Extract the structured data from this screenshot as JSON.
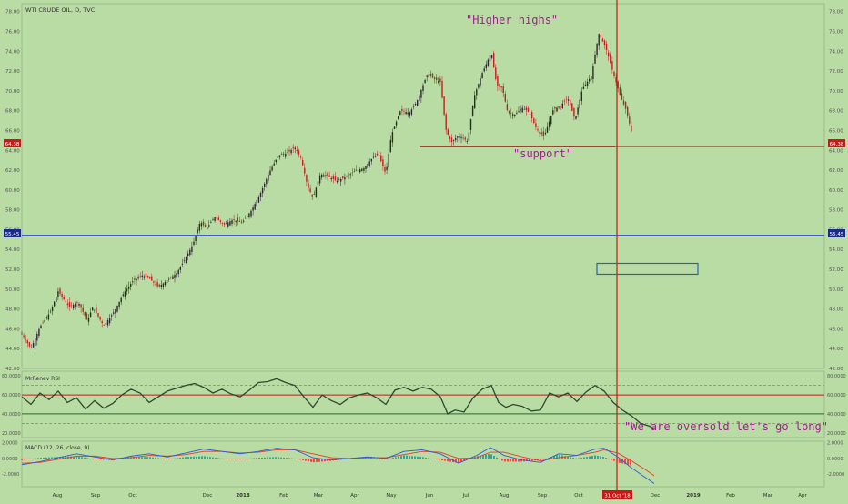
{
  "header": {
    "symbol_title": "WTI CRUDE OIL, D, TVC"
  },
  "annotations": {
    "higher_highs": "\"Higher highs\"",
    "support": "\"support\"",
    "oversold": "\"We are oversold let's go long\""
  },
  "colors": {
    "background": "#b9dba4",
    "bull_candle": "#2a2a2a",
    "bear_candle": "#c02020",
    "support_line": "#c81818",
    "last_price_line": "#3050c8",
    "annotation_text": "#a0208c",
    "rsi_line": "#2d4a2d",
    "macd_line": "#2c5ad8",
    "signal_line": "#e04028",
    "hist_up": "#2aa8a0",
    "hist_down": "#f04848"
  },
  "chart_data": [
    {
      "type": "candlestick",
      "title": "WTI CRUDE OIL, D, TVC",
      "x_labels": [
        "Aug",
        "Sep",
        "Oct",
        "Nov",
        "Dec",
        "2018",
        "Feb",
        "Mar",
        "Apr",
        "May",
        "Jun",
        "Jul",
        "Aug",
        "Sep",
        "Oct",
        "Nov",
        "Dec",
        "2019",
        "Feb",
        "Mar",
        "Apr"
      ],
      "highlighted_date": "31 Oct '18",
      "y_ticks": [
        "42.00",
        "44.00",
        "46.00",
        "48.00",
        "50.00",
        "52.00",
        "54.00",
        "56.00",
        "58.00",
        "60.00",
        "62.00",
        "64.00",
        "66.00",
        "68.00",
        "70.00",
        "72.00",
        "74.00",
        "76.00",
        "78.00"
      ],
      "ylim": [
        42,
        78.8
      ],
      "price_path": [
        [
          0,
          45.5
        ],
        [
          10,
          44.0
        ],
        [
          20,
          46.2
        ],
        [
          32,
          47.8
        ],
        [
          40,
          49.8
        ],
        [
          52,
          48.2
        ],
        [
          62,
          48.7
        ],
        [
          72,
          46.8
        ],
        [
          78,
          48.2
        ],
        [
          90,
          46.3
        ],
        [
          102,
          47.8
        ],
        [
          112,
          49.6
        ],
        [
          122,
          50.8
        ],
        [
          132,
          51.4
        ],
        [
          140,
          51.1
        ],
        [
          150,
          50.2
        ],
        [
          160,
          50.9
        ],
        [
          170,
          51.6
        ],
        [
          178,
          52.8
        ],
        [
          188,
          54.5
        ],
        [
          196,
          56.8
        ],
        [
          203,
          56.1
        ],
        [
          212,
          57.3
        ],
        [
          222,
          56.5
        ],
        [
          232,
          57.0
        ],
        [
          242,
          56.7
        ],
        [
          252,
          57.9
        ],
        [
          262,
          59.6
        ],
        [
          272,
          61.8
        ],
        [
          282,
          63.5
        ],
        [
          291,
          63.7
        ],
        [
          300,
          64.3
        ],
        [
          307,
          63.2
        ],
        [
          314,
          60.4
        ],
        [
          320,
          59.2
        ],
        [
          328,
          61.6
        ],
        [
          336,
          61.4
        ],
        [
          346,
          60.9
        ],
        [
          356,
          61.3
        ],
        [
          366,
          61.9
        ],
        [
          376,
          62.2
        ],
        [
          386,
          63.3
        ],
        [
          392,
          63.6
        ],
        [
          400,
          61.6
        ],
        [
          406,
          65.5
        ],
        [
          416,
          68.0
        ],
        [
          426,
          67.8
        ],
        [
          434,
          68.9
        ],
        [
          446,
          71.8
        ],
        [
          453,
          71.2
        ],
        [
          460,
          70.9
        ],
        [
          466,
          66.1
        ],
        [
          472,
          64.8
        ],
        [
          480,
          65.5
        ],
        [
          490,
          64.9
        ],
        [
          497,
          69.4
        ],
        [
          506,
          71.8
        ],
        [
          516,
          73.9
        ],
        [
          522,
          70.5
        ],
        [
          528,
          70.3
        ],
        [
          534,
          67.8
        ],
        [
          542,
          67.6
        ],
        [
          550,
          68.3
        ],
        [
          558,
          67.8
        ],
        [
          566,
          66.1
        ],
        [
          574,
          65.4
        ],
        [
          584,
          68.1
        ],
        [
          592,
          68.5
        ],
        [
          600,
          69.3
        ],
        [
          608,
          67.1
        ],
        [
          616,
          70.2
        ],
        [
          626,
          71.5
        ],
        [
          634,
          75.8
        ],
        [
          642,
          74.3
        ],
        [
          650,
          71.8
        ],
        [
          658,
          69.4
        ],
        [
          664,
          68.1
        ],
        [
          670,
          65.9
        ],
        [
          676,
          64.3
        ],
        [
          682,
          62.0
        ],
        [
          688,
          59.8
        ],
        [
          695,
          55.5
        ]
      ],
      "last_price": 55.45,
      "support_level": 64.38
    },
    {
      "type": "line",
      "title": "MrRenev RSI",
      "y_ticks": [
        "20.0000",
        "40.0000",
        "60.0000",
        "80.0000"
      ],
      "ylim": [
        15,
        85
      ],
      "reference_lines": [
        30,
        40,
        60,
        70
      ],
      "rsi_path": [
        [
          0,
          58
        ],
        [
          10,
          50
        ],
        [
          20,
          62
        ],
        [
          30,
          55
        ],
        [
          40,
          64
        ],
        [
          50,
          52
        ],
        [
          60,
          57
        ],
        [
          70,
          45
        ],
        [
          80,
          54
        ],
        [
          90,
          46
        ],
        [
          100,
          51
        ],
        [
          110,
          60
        ],
        [
          120,
          66
        ],
        [
          130,
          62
        ],
        [
          140,
          52
        ],
        [
          150,
          58
        ],
        [
          160,
          64
        ],
        [
          170,
          67
        ],
        [
          180,
          70
        ],
        [
          190,
          72
        ],
        [
          200,
          68
        ],
        [
          210,
          62
        ],
        [
          220,
          66
        ],
        [
          230,
          61
        ],
        [
          240,
          58
        ],
        [
          250,
          65
        ],
        [
          260,
          73
        ],
        [
          270,
          74
        ],
        [
          280,
          77
        ],
        [
          290,
          73
        ],
        [
          300,
          70
        ],
        [
          310,
          58
        ],
        [
          320,
          47
        ],
        [
          330,
          60
        ],
        [
          340,
          54
        ],
        [
          350,
          50
        ],
        [
          360,
          57
        ],
        [
          370,
          60
        ],
        [
          380,
          62
        ],
        [
          390,
          57
        ],
        [
          400,
          50
        ],
        [
          410,
          65
        ],
        [
          420,
          68
        ],
        [
          430,
          64
        ],
        [
          440,
          68
        ],
        [
          450,
          66
        ],
        [
          460,
          58
        ],
        [
          468,
          40
        ],
        [
          476,
          44
        ],
        [
          486,
          42
        ],
        [
          496,
          57
        ],
        [
          506,
          66
        ],
        [
          516,
          70
        ],
        [
          524,
          52
        ],
        [
          532,
          47
        ],
        [
          540,
          50
        ],
        [
          550,
          48
        ],
        [
          560,
          43
        ],
        [
          570,
          44
        ],
        [
          580,
          62
        ],
        [
          590,
          58
        ],
        [
          600,
          62
        ],
        [
          610,
          53
        ],
        [
          620,
          63
        ],
        [
          630,
          70
        ],
        [
          640,
          64
        ],
        [
          650,
          52
        ],
        [
          660,
          44
        ],
        [
          670,
          38
        ],
        [
          680,
          30
        ],
        [
          690,
          27
        ],
        [
          695,
          23
        ]
      ]
    },
    {
      "type": "line",
      "title": "MACD (12, 26, close, 9)",
      "y_ticks": [
        "-2.0000",
        "0.0000",
        "2.0000"
      ],
      "ylim": [
        -3.6,
        2.2
      ],
      "macd_path": [
        [
          0,
          -0.8
        ],
        [
          20,
          -0.4
        ],
        [
          40,
          0.1
        ],
        [
          60,
          0.6
        ],
        [
          80,
          0.2
        ],
        [
          100,
          -0.2
        ],
        [
          120,
          0.3
        ],
        [
          140,
          0.6
        ],
        [
          160,
          0.2
        ],
        [
          180,
          0.7
        ],
        [
          200,
          1.2
        ],
        [
          220,
          0.9
        ],
        [
          240,
          0.6
        ],
        [
          260,
          0.9
        ],
        [
          280,
          1.3
        ],
        [
          300,
          1.1
        ],
        [
          320,
          0.1
        ],
        [
          340,
          -0.2
        ],
        [
          360,
          0.0
        ],
        [
          380,
          0.2
        ],
        [
          400,
          0.0
        ],
        [
          420,
          0.9
        ],
        [
          440,
          1.1
        ],
        [
          460,
          0.6
        ],
        [
          480,
          -0.6
        ],
        [
          500,
          0.4
        ],
        [
          515,
          1.4
        ],
        [
          530,
          0.4
        ],
        [
          550,
          -0.2
        ],
        [
          570,
          -0.5
        ],
        [
          590,
          0.6
        ],
        [
          610,
          0.4
        ],
        [
          630,
          1.2
        ],
        [
          640,
          1.3
        ],
        [
          655,
          0.2
        ],
        [
          670,
          -1.2
        ],
        [
          685,
          -2.4
        ],
        [
          695,
          -3.2
        ]
      ],
      "signal_path": [
        [
          0,
          -0.6
        ],
        [
          20,
          -0.5
        ],
        [
          40,
          -0.1
        ],
        [
          60,
          0.3
        ],
        [
          80,
          0.3
        ],
        [
          100,
          0.0
        ],
        [
          120,
          0.1
        ],
        [
          140,
          0.4
        ],
        [
          160,
          0.3
        ],
        [
          180,
          0.5
        ],
        [
          200,
          0.9
        ],
        [
          220,
          0.9
        ],
        [
          240,
          0.7
        ],
        [
          260,
          0.8
        ],
        [
          280,
          1.1
        ],
        [
          300,
          1.1
        ],
        [
          320,
          0.6
        ],
        [
          340,
          0.1
        ],
        [
          360,
          0.0
        ],
        [
          380,
          0.1
        ],
        [
          400,
          0.1
        ],
        [
          420,
          0.5
        ],
        [
          440,
          0.9
        ],
        [
          460,
          0.8
        ],
        [
          480,
          0.0
        ],
        [
          500,
          0.1
        ],
        [
          515,
          0.8
        ],
        [
          530,
          0.8
        ],
        [
          550,
          0.2
        ],
        [
          570,
          -0.3
        ],
        [
          590,
          0.1
        ],
        [
          610,
          0.4
        ],
        [
          630,
          0.8
        ],
        [
          640,
          1.1
        ],
        [
          655,
          0.7
        ],
        [
          670,
          -0.3
        ],
        [
          685,
          -1.4
        ],
        [
          695,
          -2.2
        ]
      ]
    }
  ]
}
